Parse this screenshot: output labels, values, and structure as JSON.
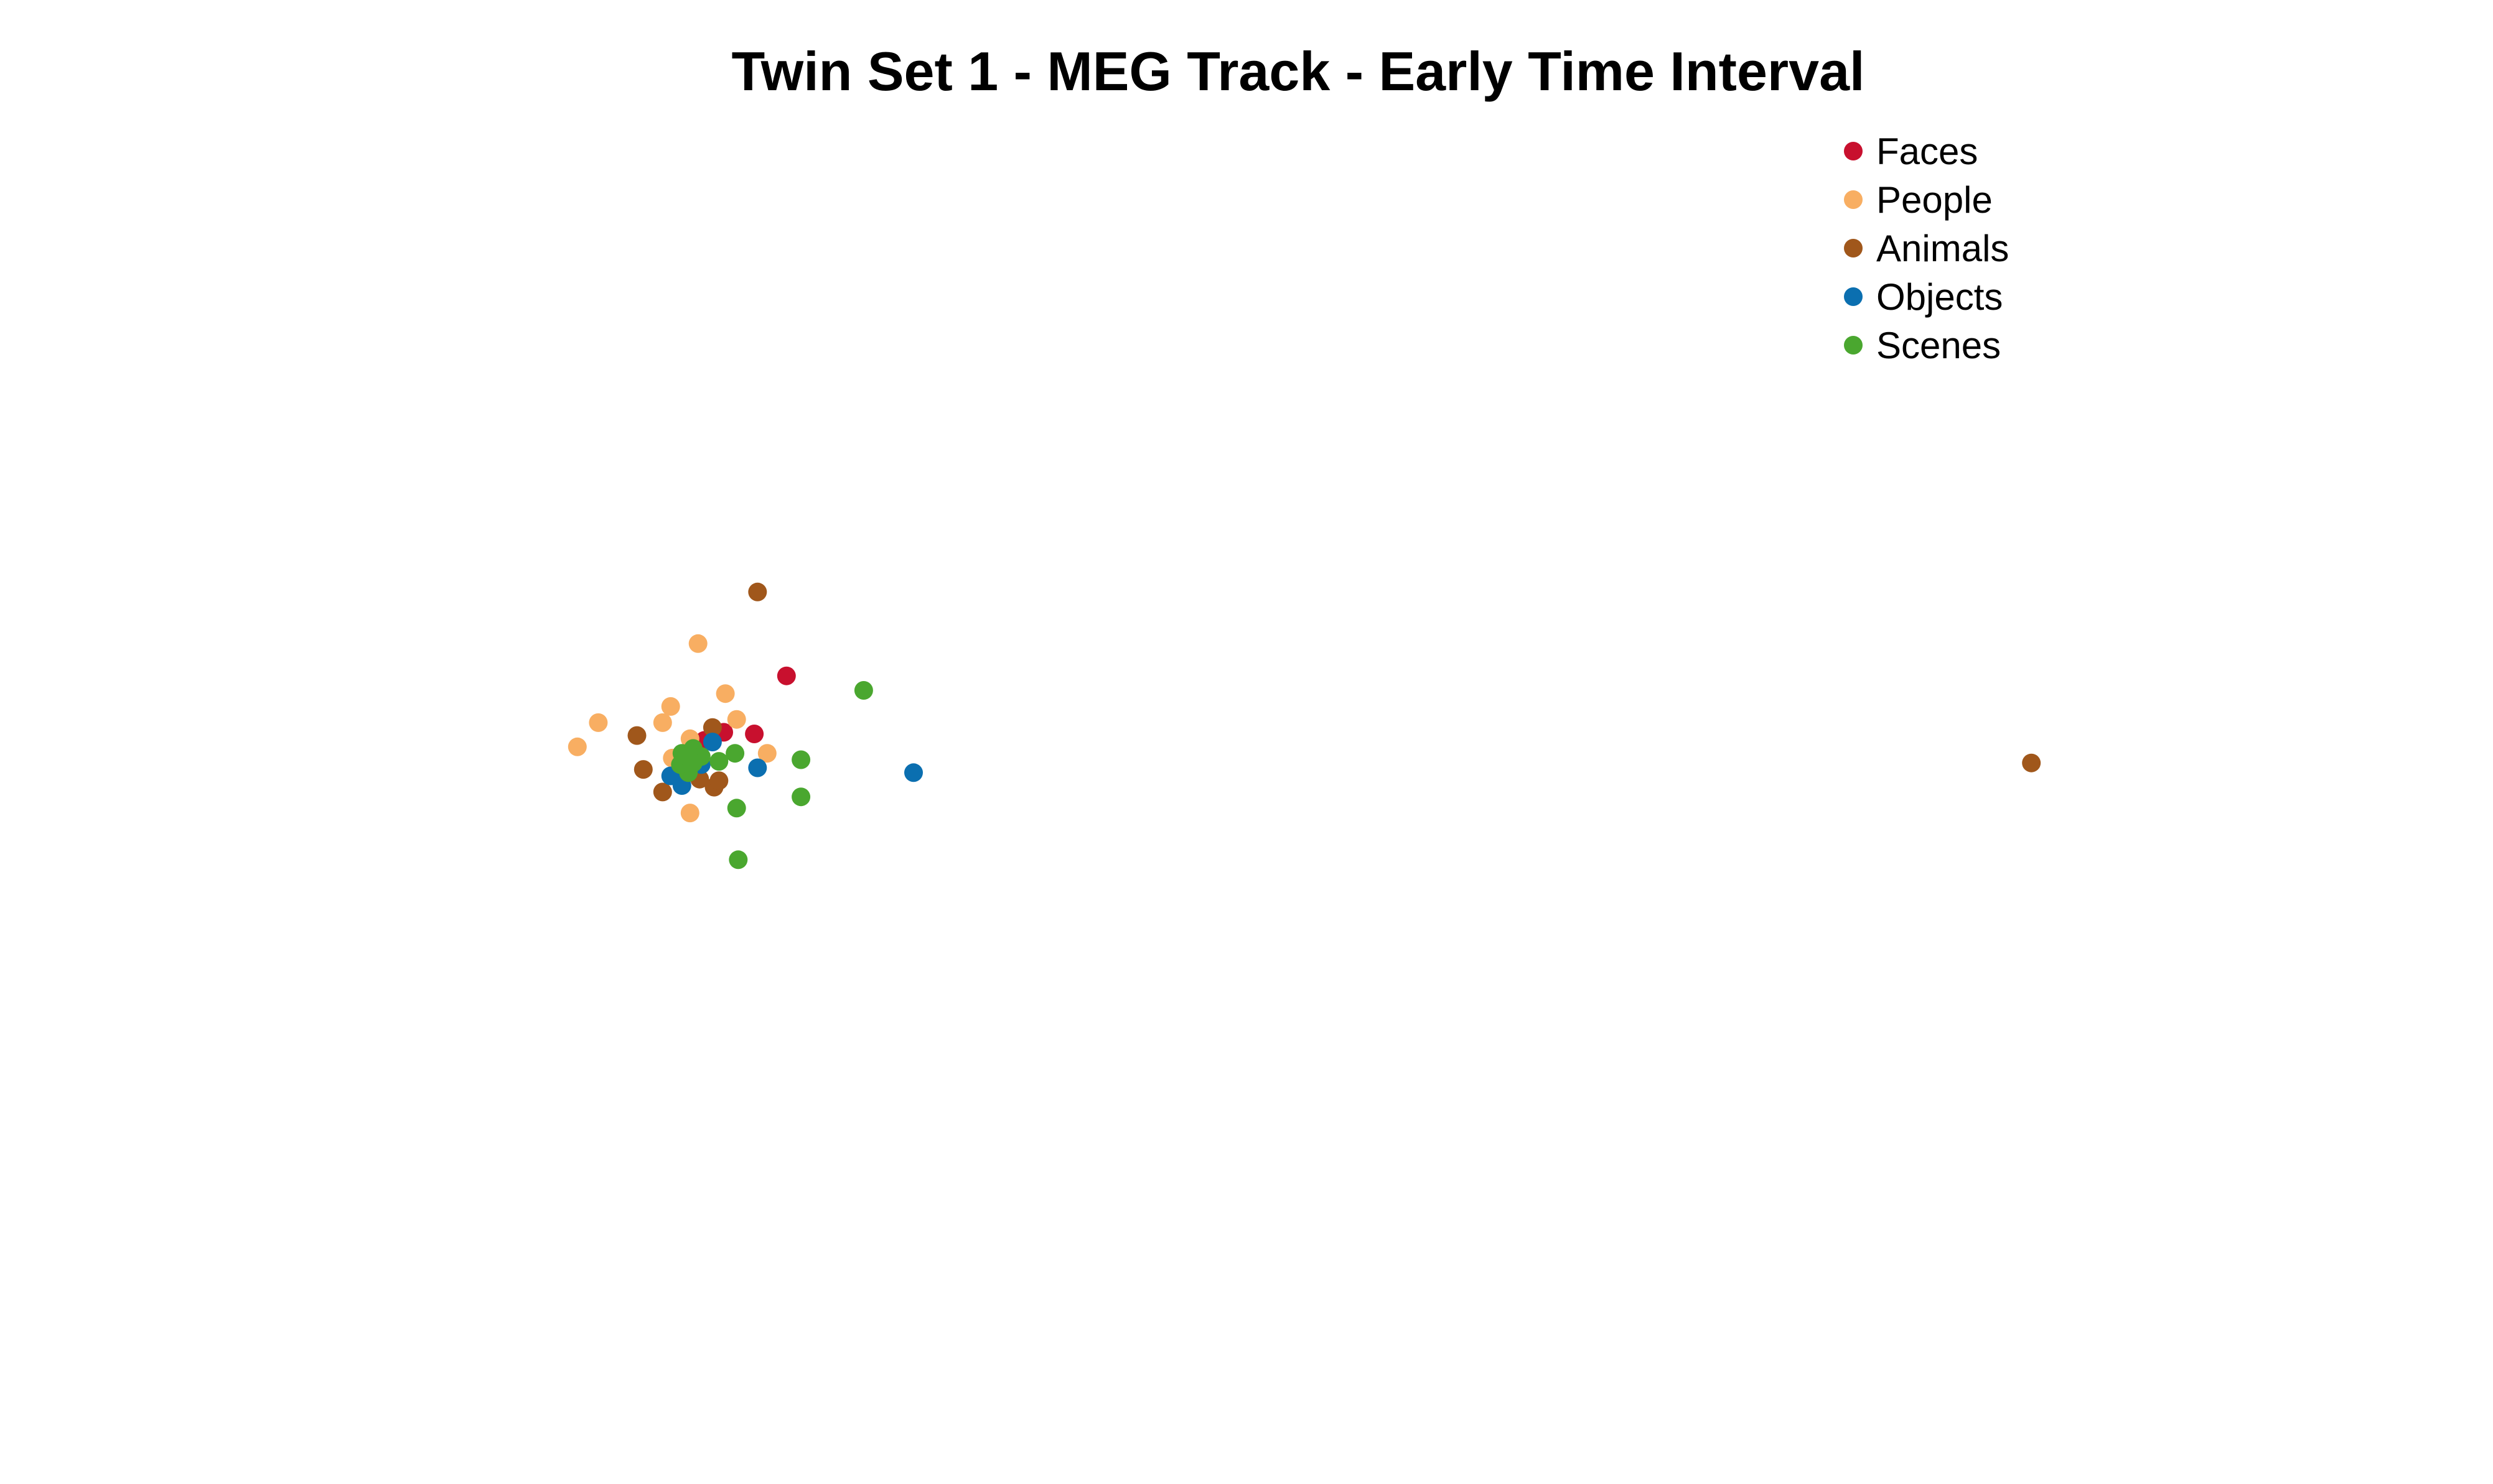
{
  "chart_data": {
    "type": "scatter",
    "title": "Twin Set 1 - MEG Track - Early Time Interval",
    "xlabel": "",
    "ylabel": "",
    "xlim": [
      0,
      1550
    ],
    "ylim": [
      0,
      920
    ],
    "axes_visible": false,
    "grid": false,
    "legend_position": "top-right",
    "series": [
      {
        "name": "Faces",
        "color": "#C8102E",
        "points": [
          {
            "x": 489,
            "y": 501
          },
          {
            "x": 469,
            "y": 465
          },
          {
            "x": 450,
            "y": 466
          },
          {
            "x": 438,
            "y": 461
          }
        ]
      },
      {
        "name": "People",
        "color": "#F8AE62",
        "points": [
          {
            "x": 434,
            "y": 521
          },
          {
            "x": 451,
            "y": 490
          },
          {
            "x": 417,
            "y": 482
          },
          {
            "x": 372,
            "y": 472
          },
          {
            "x": 412,
            "y": 472
          },
          {
            "x": 359,
            "y": 457
          },
          {
            "x": 458,
            "y": 474
          },
          {
            "x": 429,
            "y": 462
          },
          {
            "x": 418,
            "y": 450
          },
          {
            "x": 477,
            "y": 453
          },
          {
            "x": 429,
            "y": 416
          }
        ]
      },
      {
        "name": "Animals",
        "color": "#A0571B",
        "points": [
          {
            "x": 471,
            "y": 553
          },
          {
            "x": 396,
            "y": 464
          },
          {
            "x": 443,
            "y": 469
          },
          {
            "x": 400,
            "y": 443
          },
          {
            "x": 412,
            "y": 429
          },
          {
            "x": 444,
            "y": 432
          },
          {
            "x": 447,
            "y": 436
          },
          {
            "x": 435,
            "y": 437
          },
          {
            "x": 1263,
            "y": 447
          }
        ]
      },
      {
        "name": "Objects",
        "color": "#0B6FB0",
        "points": [
          {
            "x": 568,
            "y": 441
          },
          {
            "x": 471,
            "y": 444
          },
          {
            "x": 443,
            "y": 460
          },
          {
            "x": 417,
            "y": 439
          },
          {
            "x": 424,
            "y": 433
          },
          {
            "x": 436,
            "y": 446
          },
          {
            "x": 430,
            "y": 451
          }
        ]
      },
      {
        "name": "Scenes",
        "color": "#4AA72F",
        "points": [
          {
            "x": 537,
            "y": 492
          },
          {
            "x": 498,
            "y": 449
          },
          {
            "x": 498,
            "y": 426
          },
          {
            "x": 458,
            "y": 419
          },
          {
            "x": 459,
            "y": 387
          },
          {
            "x": 457,
            "y": 453
          },
          {
            "x": 447,
            "y": 448
          },
          {
            "x": 424,
            "y": 453
          },
          {
            "x": 431,
            "y": 456
          },
          {
            "x": 436,
            "y": 451
          },
          {
            "x": 428,
            "y": 441
          },
          {
            "x": 423,
            "y": 446
          },
          {
            "x": 431,
            "y": 447
          },
          {
            "x": 427,
            "y": 451
          }
        ]
      }
    ]
  }
}
